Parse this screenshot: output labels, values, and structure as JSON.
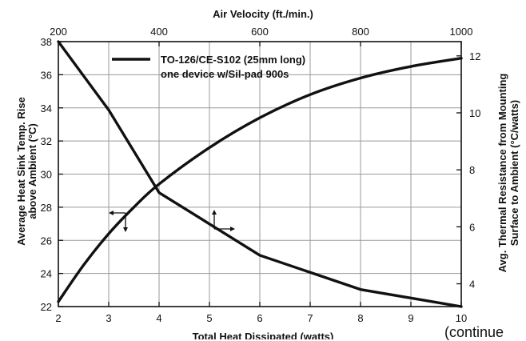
{
  "chart_data": {
    "type": "line",
    "title": "",
    "x_bottom": {
      "label": "Total Heat Dissipated (watts)",
      "range": [
        2,
        10
      ],
      "ticks": [
        2,
        3,
        4,
        5,
        6,
        7,
        8,
        9,
        10
      ]
    },
    "x_top": {
      "label": "Air Velocity (ft./min.)",
      "range": [
        200,
        1000
      ],
      "ticks": [
        200,
        400,
        600,
        800,
        1000
      ]
    },
    "y_left": {
      "label_lines": [
        "Average Heat Sink Temp. Rise",
        "above Ambient (°C)"
      ],
      "range": [
        22,
        38
      ],
      "ticks": [
        22,
        24,
        26,
        28,
        30,
        32,
        34,
        36,
        38
      ]
    },
    "y_right": {
      "label_lines": [
        "Avg. Thermal Resistance from Mounting",
        "Surface to Ambient (°C/watts)"
      ],
      "range": [
        3.2,
        12.5
      ],
      "ticks": [
        4,
        6,
        8,
        10,
        12
      ]
    },
    "grid": true,
    "legend": {
      "placement": "top-left",
      "lines": [
        "TO-126/CE-S102 (25mm long)",
        "one device w/Sil-pad 900s"
      ]
    },
    "series": [
      {
        "axes": "bottom-left",
        "x": [
          2,
          2.5,
          3,
          3.5,
          4,
          5,
          6,
          7,
          8,
          9,
          10
        ],
        "y": [
          22.3,
          24.5,
          26.4,
          28.0,
          29.4,
          31.6,
          33.4,
          34.8,
          35.8,
          36.5,
          37.0
        ]
      },
      {
        "axes": "top-right",
        "x": [
          200,
          300,
          400,
          500,
          600,
          700,
          800,
          900,
          1000
        ],
        "y": [
          12.5,
          10.1,
          7.2,
          6.1,
          5.0,
          4.4,
          3.8,
          3.5,
          3.2
        ]
      }
    ],
    "note": "(continue"
  }
}
